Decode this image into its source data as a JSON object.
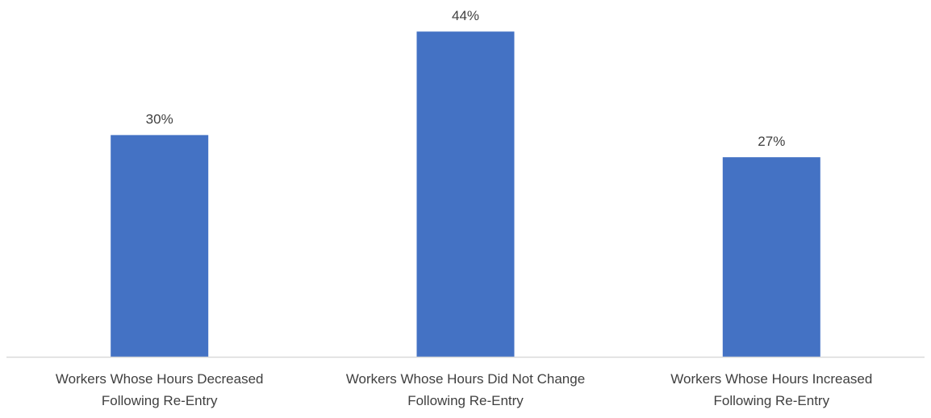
{
  "chart_data": {
    "type": "bar",
    "categories": [
      [
        "Workers Whose Hours Decreased",
        "Following Re-Entry"
      ],
      [
        "Workers Whose Hours Did Not Change",
        "Following Re-Entry"
      ],
      [
        "Workers Whose Hours Increased",
        "Following Re-Entry"
      ]
    ],
    "values": [
      30,
      44,
      27
    ],
    "value_labels": [
      "30%",
      "44%",
      "27%"
    ],
    "unit": "%",
    "title": "",
    "xlabel": "",
    "ylabel": "",
    "ylim": [
      0,
      45
    ],
    "grid": false,
    "legend": "none",
    "bar_color": "#4472C4"
  }
}
